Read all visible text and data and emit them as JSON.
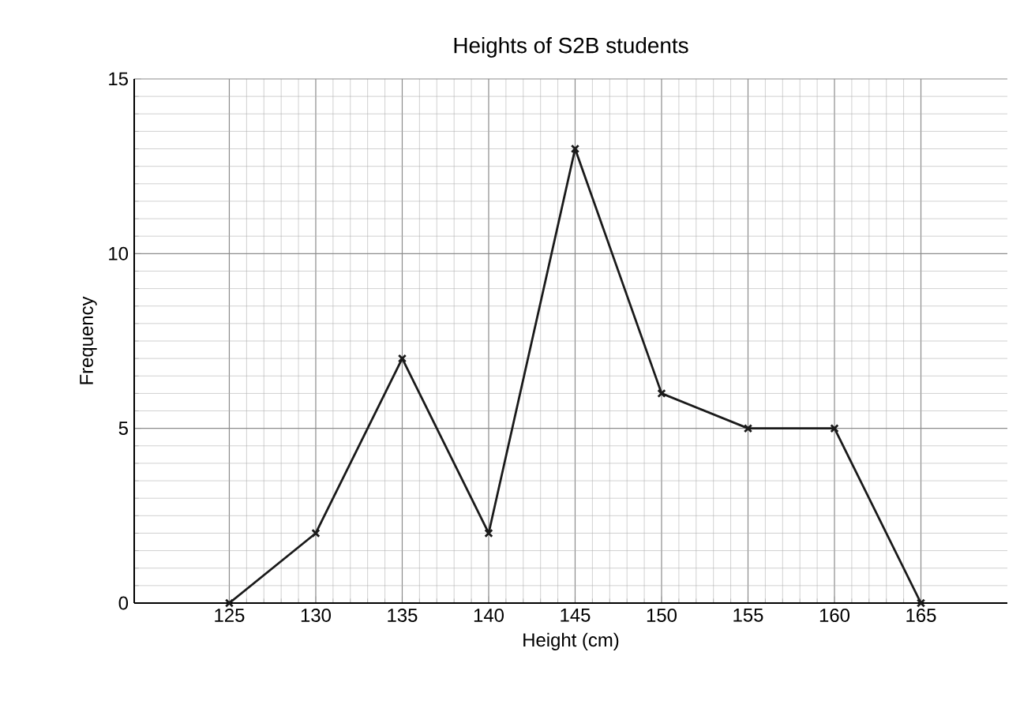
{
  "chart_data": {
    "type": "line",
    "title": "Heights of S2B students",
    "xlabel": "Height (cm)",
    "ylabel": "Frequency",
    "x": [
      125,
      130,
      135,
      140,
      145,
      150,
      155,
      160,
      165
    ],
    "values": [
      0,
      2,
      7,
      2,
      13,
      6,
      5,
      5,
      0
    ],
    "color": "#1a1a1a",
    "marker": "cross",
    "grid": true,
    "xlim": [
      119.5,
      170
    ],
    "xticks": [
      125,
      130,
      135,
      140,
      145,
      150,
      155,
      160,
      165
    ],
    "ylim": [
      0,
      15
    ],
    "yticks": [
      0,
      5,
      10,
      15
    ]
  }
}
